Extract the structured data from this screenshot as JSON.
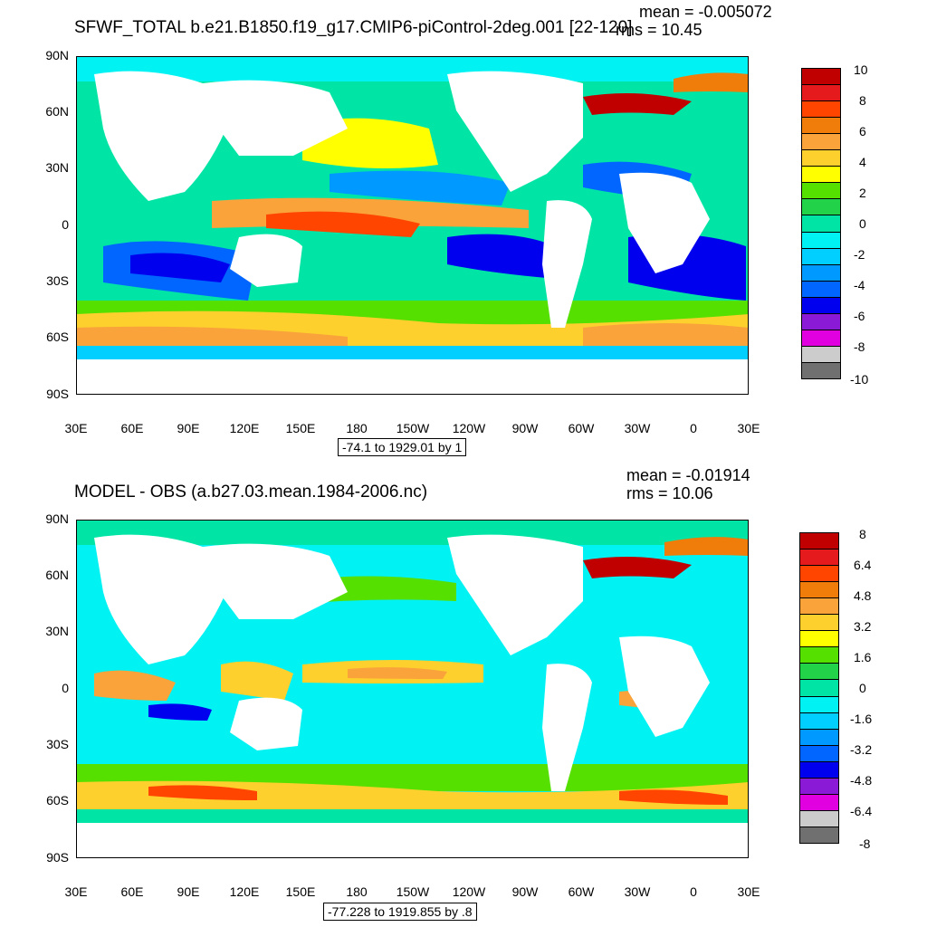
{
  "panels": [
    {
      "title": "SFWF_TOTAL b.e21.B1850.f19_g17.CMIP6-piControl-2deg.001 [22-120]",
      "mean": "mean = -0.005072",
      "rms": "rms = 10.45",
      "range_note": "-74.1 to 1929.01 by 1",
      "lat_labels": [
        "90N",
        "60N",
        "30N",
        "0",
        "30S",
        "60S",
        "90S"
      ],
      "lon_labels": [
        "30E",
        "60E",
        "90E",
        "120E",
        "150E",
        "180",
        "150W",
        "120W",
        "90W",
        "60W",
        "30W",
        "0",
        "30E"
      ],
      "colorbar_labels": [
        "10",
        "8",
        "6",
        "4",
        "2",
        "0",
        "-2",
        "-4",
        "-6",
        "-8",
        "-10"
      ],
      "colorbar_colors": [
        "#c00000",
        "#e41a1c",
        "#ff4500",
        "#f07c0a",
        "#f9a33a",
        "#fdd02e",
        "#ffff00",
        "#55e000",
        "#22d34a",
        "#00e5a5",
        "#00f2f2",
        "#00cfff",
        "#0099ff",
        "#0066ff",
        "#0000ee",
        "#8a1ad6",
        "#e000e0",
        "#cccccc",
        "#707070"
      ]
    },
    {
      "title": "MODEL - OBS (a.b27.03.mean.1984-2006.nc)",
      "mean": "mean = -0.01914",
      "rms": "rms = 10.06",
      "range_note": "-77.228 to 1919.855 by .8",
      "lat_labels": [
        "90N",
        "60N",
        "30N",
        "0",
        "30S",
        "60S",
        "90S"
      ],
      "lon_labels": [
        "30E",
        "60E",
        "90E",
        "120E",
        "150E",
        "180",
        "150W",
        "120W",
        "90W",
        "60W",
        "30W",
        "0",
        "30E"
      ],
      "colorbar_labels": [
        "8",
        "6.4",
        "4.8",
        "3.2",
        "1.6",
        "0",
        "-1.6",
        "-3.2",
        "-4.8",
        "-6.4",
        "-8"
      ],
      "colorbar_colors": [
        "#c00000",
        "#e41a1c",
        "#ff4500",
        "#f07c0a",
        "#f9a33a",
        "#fdd02e",
        "#ffff00",
        "#55e000",
        "#22d34a",
        "#00e5a5",
        "#00f2f2",
        "#00cfff",
        "#0099ff",
        "#0066ff",
        "#0000ee",
        "#8a1ad6",
        "#e000e0",
        "#cccccc",
        "#707070"
      ]
    }
  ]
}
